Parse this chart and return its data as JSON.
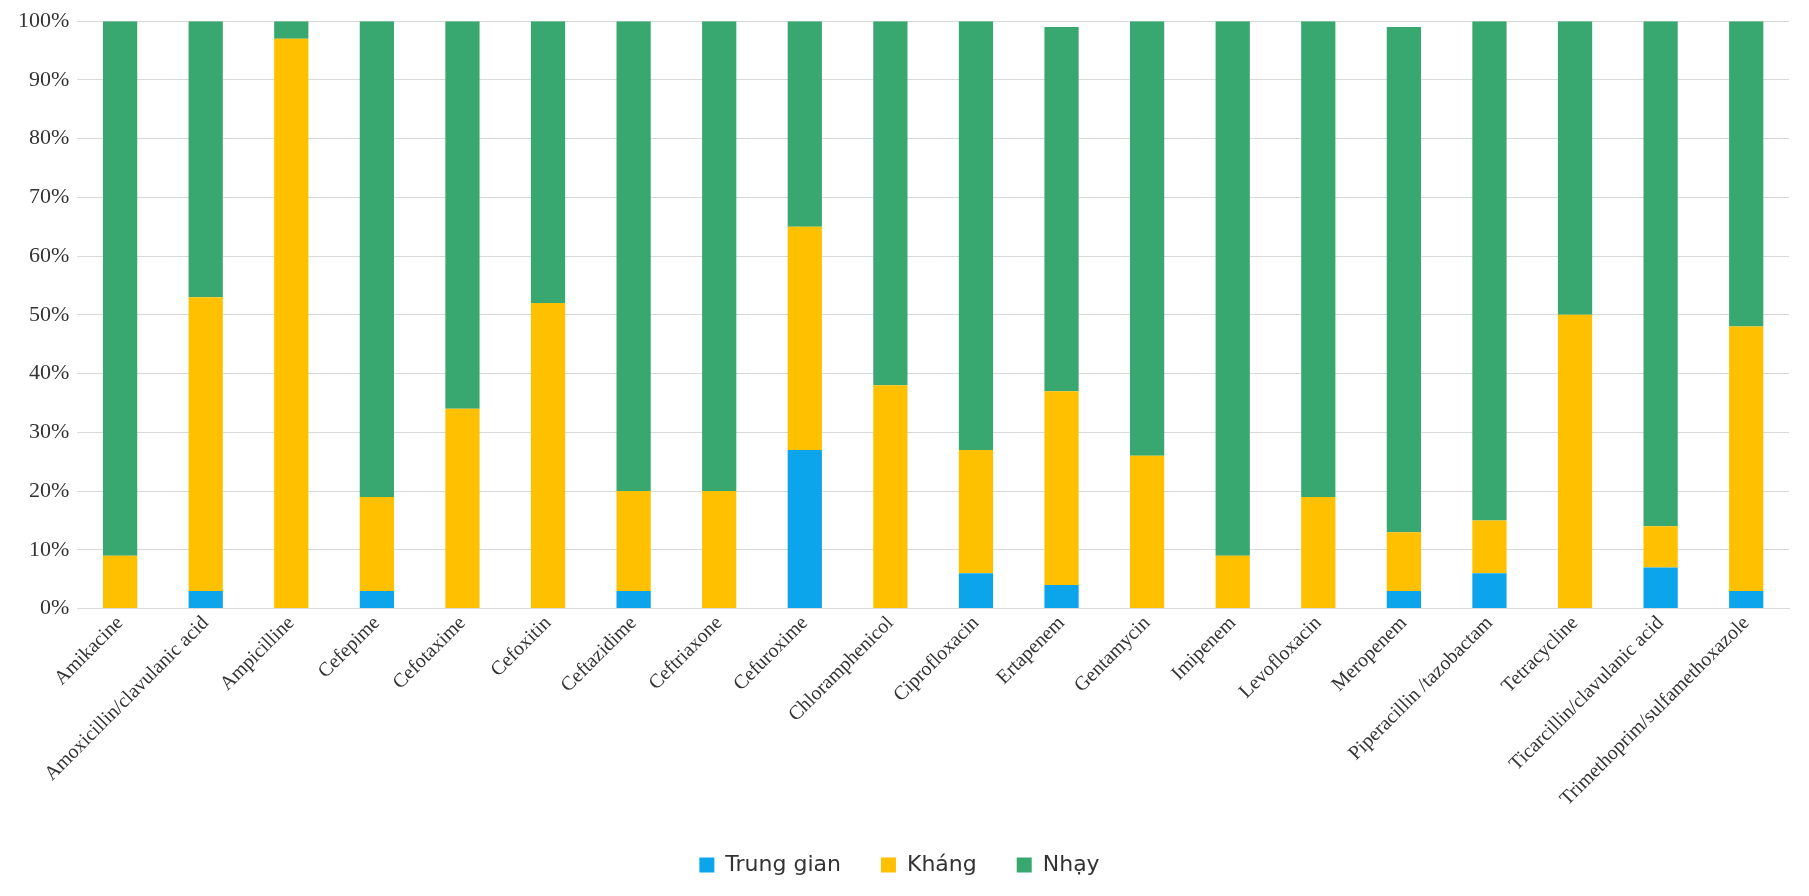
{
  "chart_data": {
    "type": "bar",
    "stacked": true,
    "categories": [
      "Amikacine",
      "Amoxicillin/clavulanic acid",
      "Ampicilline",
      "Cefepime",
      "Cefotaxime",
      "Cefoxitin",
      "Ceftazidime",
      "Ceftriaxone",
      "Cefuroxime",
      "Chloramphenicol",
      "Ciprofloxacin",
      "Ertapenem",
      "Gentamycin",
      "Imipenem",
      "Levofloxacin",
      "Meropenem",
      "Piperacillin /tazobactam",
      "Tetracycline",
      "Ticarcillin/clavulanic acid",
      "Trimethoprim/sulfamethoxazole"
    ],
    "series": [
      {
        "name": "Trung gian",
        "color": "#0ca4eb",
        "values": [
          0,
          3,
          0,
          3,
          0,
          0,
          3,
          0,
          27,
          0,
          6,
          4,
          0,
          0,
          0,
          3,
          6,
          0,
          7,
          3
        ]
      },
      {
        "name": "Kháng",
        "color": "#ffc000",
        "values": [
          9,
          50,
          97,
          16,
          34,
          52,
          17,
          20,
          38,
          38,
          21,
          33,
          26,
          9,
          19,
          10,
          9,
          50,
          7,
          45
        ]
      },
      {
        "name": "Nhạy",
        "color": "#38a870",
        "values": [
          91,
          47,
          3,
          81,
          66,
          48,
          80,
          80,
          35,
          62,
          73,
          62,
          74,
          91,
          81,
          86,
          85,
          50,
          86,
          52
        ]
      }
    ],
    "ylim": [
      0,
      100
    ],
    "yticks": [
      {
        "value": 0,
        "label": "0%"
      },
      {
        "value": 10,
        "label": "10%"
      },
      {
        "value": 20,
        "label": "20%"
      },
      {
        "value": 30,
        "label": "30%"
      },
      {
        "value": 40,
        "label": "40%"
      },
      {
        "value": 50,
        "label": "50%"
      },
      {
        "value": 60,
        "label": "60%"
      },
      {
        "value": 70,
        "label": "70%"
      },
      {
        "value": 80,
        "label": "80%"
      },
      {
        "value": 90,
        "label": "90%"
      },
      {
        "value": 100,
        "label": "100%"
      }
    ],
    "grid": "y",
    "legend": "bottom"
  }
}
